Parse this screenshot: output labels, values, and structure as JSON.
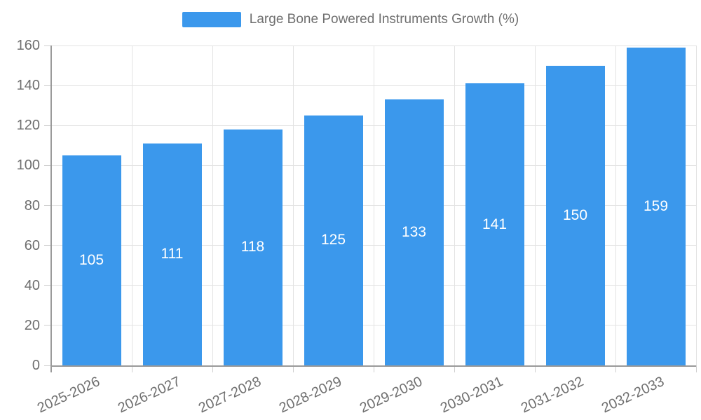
{
  "legend": {
    "label": "Large Bone Powered Instruments Growth (%)"
  },
  "chart_data": {
    "type": "bar",
    "title": "",
    "xlabel": "",
    "ylabel": "",
    "categories": [
      "2025-2026",
      "2026-2027",
      "2027-2028",
      "2028-2029",
      "2029-2030",
      "2030-2031",
      "2031-2032",
      "2032-2033"
    ],
    "values": [
      105,
      111,
      118,
      125,
      133,
      141,
      150,
      159
    ],
    "series_name": "Large Bone Powered Instruments Growth (%)",
    "ylim": [
      0,
      160
    ],
    "yticks": [
      0,
      20,
      40,
      60,
      80,
      100,
      120,
      140,
      160
    ],
    "grid": true,
    "legend_position": "top",
    "value_labels": "inside-center",
    "colors": {
      "bar": "#3b98ec",
      "value_label": "#ffffff",
      "axis_text": "#6f6f6f",
      "gridline": "#e3e3e3",
      "tick_mark": "#cfcfcf",
      "axis_line": "#9a9a9a",
      "background": "#ffffff"
    }
  }
}
